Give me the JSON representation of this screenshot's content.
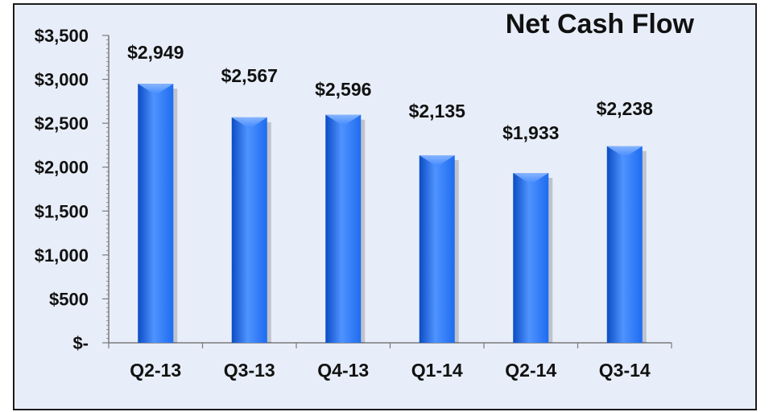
{
  "chart_data": {
    "type": "bar",
    "title": "Net Cash Flow",
    "categories": [
      "Q2-13",
      "Q3-13",
      "Q4-13",
      "Q1-14",
      "Q2-14",
      "Q3-14"
    ],
    "values": [
      2949,
      2567,
      2596,
      2135,
      1933,
      2238
    ],
    "data_labels": [
      "$2,949",
      "$2,567",
      "$2,596",
      "$2,135",
      "$1,933",
      "$2,238"
    ],
    "yticks": [
      0,
      500,
      1000,
      1500,
      2000,
      2500,
      3000,
      3500
    ],
    "ytick_labels": [
      "$-",
      "$500",
      "$1,000",
      "$1,500",
      "$2,000",
      "$2,500",
      "$3,000",
      "$3,500"
    ],
    "ylim": [
      0,
      3500
    ],
    "xlabel": "",
    "ylabel": "",
    "grid": false,
    "legend": "none",
    "colors": {
      "bar": "#1e6cf0",
      "bar_light": "#4f93ff",
      "bar_dark": "#0b4cc4",
      "background": "#e8eef9",
      "axis": "#7a7a7a"
    }
  }
}
